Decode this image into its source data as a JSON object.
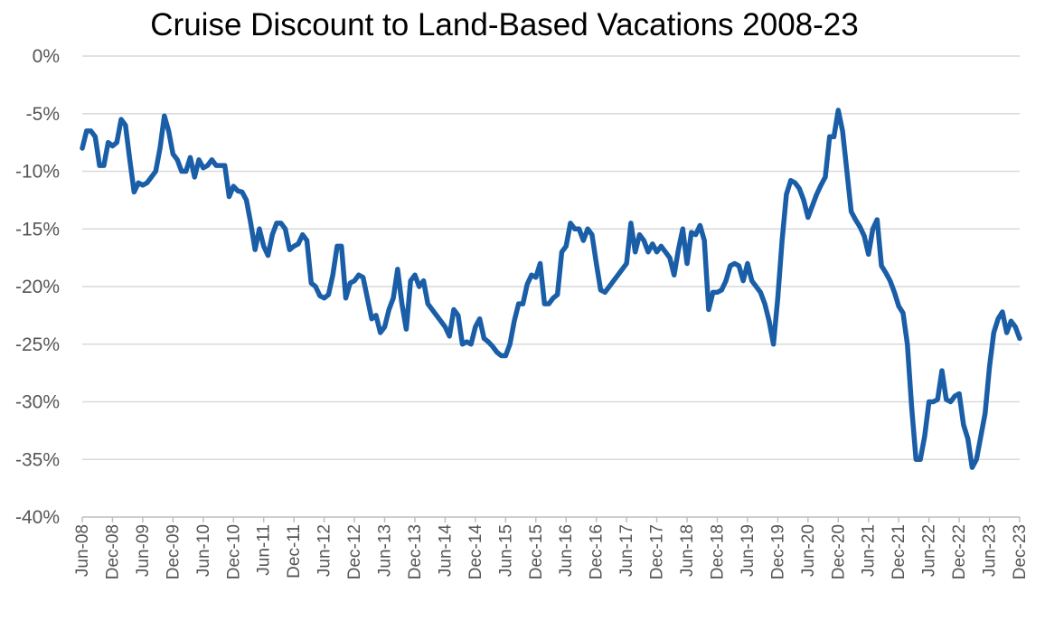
{
  "chart_data": {
    "type": "line",
    "title": "Cruise Discount to Land-Based Vacations 2008-23",
    "xlabel": "",
    "ylabel": "",
    "ylim": [
      -40,
      0
    ],
    "y_ticks": [
      "0%",
      "-5%",
      "-10%",
      "-15%",
      "-20%",
      "-25%",
      "-30%",
      "-35%",
      "-40%"
    ],
    "y_tick_values": [
      0,
      -5,
      -10,
      -15,
      -20,
      -25,
      -30,
      -35,
      -40
    ],
    "x_tick_labels": [
      "Jun-08",
      "Dec-08",
      "Jun-09",
      "Dec-09",
      "Jun-10",
      "Dec-10",
      "Jun-11",
      "Dec-11",
      "Jun-12",
      "Dec-12",
      "Jun-13",
      "Dec-13",
      "Jun-14",
      "Dec-14",
      "Jun-15",
      "Dec-15",
      "Jun-16",
      "Dec-16",
      "Jun-17",
      "Dec-17",
      "Jun-18",
      "Dec-18",
      "Jun-19",
      "Dec-19",
      "Jun-20",
      "Dec-20",
      "Jun-21",
      "Dec-21",
      "Jun-22",
      "Dec-22",
      "Jun-23",
      "Dec-23"
    ],
    "grid": true,
    "legend": "none",
    "colors": {
      "series": "#1a5ea8",
      "grid": "#d9d9d9",
      "axis": "#bfbfbf",
      "tick_text": "#555555"
    },
    "series": [
      {
        "x_start": "Jun-08",
        "x_end": "Dec-23",
        "values": [
          -8,
          -6.5,
          -6.5,
          -7,
          -9.5,
          -9.5,
          -7.5,
          -7.8,
          -7.5,
          -5.5,
          -6,
          -9,
          -11.8,
          -11,
          -11.2,
          -11,
          -10.5,
          -10,
          -8,
          -5.2,
          -6.5,
          -8.5,
          -9,
          -10,
          -10,
          -8.8,
          -10.5,
          -9,
          -9.7,
          -9.5,
          -9,
          -9.5,
          -9.5,
          -9.5,
          -12.2,
          -11.3,
          -11.7,
          -11.8,
          -12.5,
          -14.5,
          -16.8,
          -15,
          -16.5,
          -17.3,
          -15.5,
          -14.5,
          -14.5,
          -15,
          -16.8,
          -16.5,
          -16.3,
          -15.5,
          -16,
          -19.7,
          -20,
          -20.8,
          -21,
          -20.7,
          -19,
          -16.5,
          -16.5,
          -21,
          -19.7,
          -19.5,
          -19,
          -19.2,
          -21,
          -22.8,
          -22.5,
          -24,
          -23.5,
          -22,
          -21,
          -18.5,
          -21.5,
          -23.7,
          -19.5,
          -19,
          -20,
          -19.5,
          -21.5,
          -22,
          -22.5,
          -23,
          -23.5,
          -24.3,
          -22,
          -22.5,
          -25,
          -24.8,
          -25,
          -23.5,
          -22.8,
          -24.5,
          -24.8,
          -25.2,
          -25.7,
          -26,
          -26,
          -25,
          -23,
          -21.5,
          -21.5,
          -19.8,
          -19,
          -19.2,
          -18,
          -21.5,
          -21.5,
          -21,
          -20.7,
          -17,
          -16.5,
          -14.5,
          -15,
          -15,
          -16,
          -15,
          -15.5,
          -18,
          -20.3,
          -20.5,
          -20,
          -19.5,
          -19,
          -18.5,
          -18,
          -14.5,
          -17,
          -15.5,
          -16,
          -17,
          -16.3,
          -17,
          -16.5,
          -17,
          -17.5,
          -19,
          -16.8,
          -15,
          -18,
          -15.3,
          -15.5,
          -14.7,
          -16,
          -22,
          -20.5,
          -20.5,
          -20.3,
          -19.5,
          -18.2,
          -18,
          -18.2,
          -19.5,
          -18,
          -19.5,
          -20,
          -20.5,
          -21.5,
          -23,
          -25,
          -21,
          -16,
          -12,
          -10.8,
          -11,
          -11.5,
          -12.5,
          -14,
          -13,
          -12,
          -11.2,
          -10.5,
          -7,
          -7,
          -4.7,
          -6.5,
          -10,
          -13.5,
          -14.2,
          -14.8,
          -15.6,
          -17.2,
          -15,
          -14.2,
          -18.2,
          -18.8,
          -19.5,
          -20.5,
          -21.7,
          -22.3,
          -25,
          -30.5,
          -35,
          -35,
          -33,
          -30,
          -30,
          -29.8,
          -27.3,
          -29.8,
          -30,
          -29.5,
          -29.3,
          -32,
          -33.2,
          -35.7,
          -35,
          -33,
          -31,
          -27,
          -24,
          -22.8,
          -22.2,
          -24,
          -23,
          -23.5,
          -24.5
        ]
      }
    ]
  }
}
